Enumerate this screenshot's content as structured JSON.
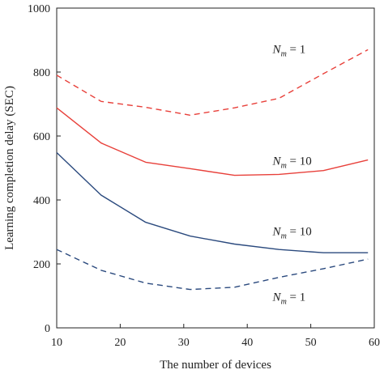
{
  "chart_data": {
    "type": "line",
    "title": "",
    "xlabel": "The number of devices",
    "ylabel": "Learning completion delay (SEC)",
    "xlim": [
      10,
      60
    ],
    "ylim": [
      0,
      1000
    ],
    "xticks": [
      "10",
      "20",
      "30",
      "40",
      "50",
      "60"
    ],
    "yticks": [
      "0",
      "200",
      "400",
      "600",
      "800",
      "1000"
    ],
    "grid": false,
    "legend": "none",
    "series": [
      {
        "color": "#e8403a",
        "dash": true,
        "x": [
          10,
          17,
          24,
          31,
          38,
          45,
          52,
          59
        ],
        "y": [
          790,
          708,
          690,
          665,
          688,
          718,
          795,
          870
        ]
      },
      {
        "color": "#e8403a",
        "dash": false,
        "x": [
          10,
          17,
          24,
          31,
          38,
          45,
          52,
          59
        ],
        "y": [
          688,
          578,
          518,
          498,
          477,
          480,
          492,
          525
        ]
      },
      {
        "color": "#2b4a7e",
        "dash": false,
        "x": [
          10,
          17,
          24,
          31,
          38,
          45,
          52,
          59
        ],
        "y": [
          548,
          415,
          330,
          287,
          262,
          245,
          235,
          235
        ]
      },
      {
        "color": "#2b4a7e",
        "dash": true,
        "x": [
          10,
          17,
          24,
          31,
          38,
          45,
          52,
          59
        ],
        "y": [
          245,
          180,
          140,
          120,
          127,
          158,
          185,
          215
        ]
      }
    ],
    "annotations": [
      {
        "n": "N",
        "sub": "m",
        "text": " = 1",
        "x": 44,
        "y": 860
      },
      {
        "n": "N",
        "sub": "m",
        "text": " = 10",
        "x": 44,
        "y": 510
      },
      {
        "n": "N",
        "sub": "m",
        "text": " = 10",
        "x": 44,
        "y": 290
      },
      {
        "n": "N",
        "sub": "m",
        "text": " = 1",
        "x": 44,
        "y": 85
      }
    ]
  }
}
